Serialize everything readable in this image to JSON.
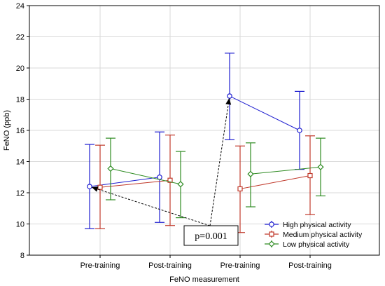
{
  "chart_data": {
    "type": "line",
    "title": "",
    "xlabel": "FeNO measurement",
    "ylabel": "FeNO (ppb)",
    "ylim": [
      8,
      24
    ],
    "yticks": [
      8,
      10,
      12,
      14,
      16,
      18,
      20,
      22,
      24
    ],
    "categories": [
      "Pre-training",
      "Post-training",
      "Pre-training",
      "Post-training"
    ],
    "grid": true,
    "legend_position": "bottom-right",
    "series": [
      {
        "name": "High physical activity",
        "color": "#1f1fd0",
        "marker": "circle",
        "groups": [
          [
            0,
            1
          ],
          [
            2,
            3
          ]
        ],
        "values": [
          12.4,
          13.0,
          18.2,
          16.0
        ],
        "lower": [
          9.7,
          10.1,
          15.4,
          13.5
        ],
        "upper": [
          15.1,
          15.9,
          20.95,
          18.5
        ]
      },
      {
        "name": "Medium physical activity",
        "color": "#c0392b",
        "marker": "square",
        "groups": [
          [
            0,
            1
          ],
          [
            2,
            3
          ]
        ],
        "values": [
          12.35,
          12.8,
          12.25,
          13.1
        ],
        "lower": [
          9.7,
          9.9,
          9.45,
          10.6
        ],
        "upper": [
          15.05,
          15.7,
          15.0,
          15.65
        ]
      },
      {
        "name": "Low physical activity",
        "color": "#2e8b22",
        "marker": "diamond",
        "groups": [
          [
            0,
            1
          ],
          [
            2,
            3
          ]
        ],
        "values": [
          13.55,
          12.55,
          13.2,
          13.65
        ],
        "lower": [
          11.55,
          10.4,
          11.1,
          11.8
        ],
        "upper": [
          15.5,
          14.65,
          15.2,
          15.5
        ]
      }
    ],
    "annotation": {
      "text": "p=0.001",
      "arrow_targets": [
        {
          "series": 0,
          "category": 0
        },
        {
          "series": 0,
          "category": 2
        }
      ]
    }
  }
}
